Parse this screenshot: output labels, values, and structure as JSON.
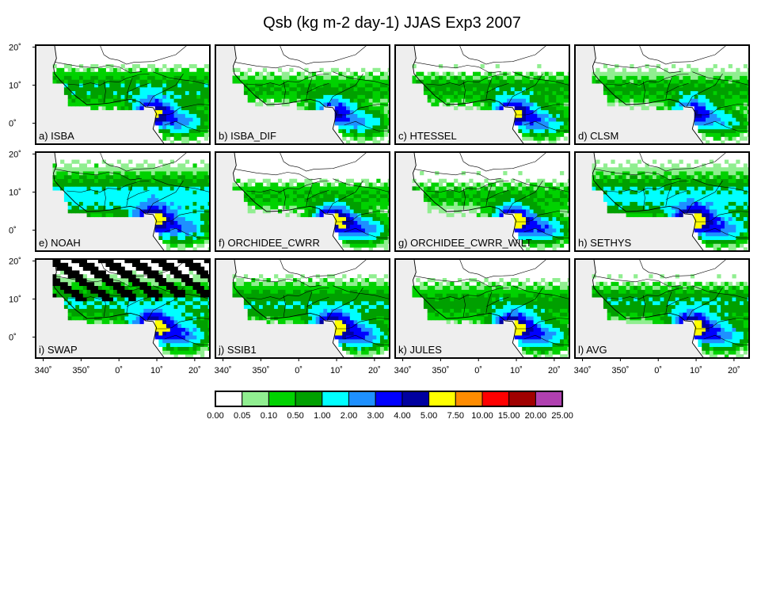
{
  "title": "Qsb (kg m-2 day-1) JJAS Exp3 2007",
  "lat_ticks": [
    "20˚",
    "10˚",
    "0˚"
  ],
  "lon_ticks": [
    "340˚",
    "350˚",
    "0˚",
    "10˚",
    "20˚"
  ],
  "panels": [
    {
      "label": "a) ISBA",
      "intensity": 0.8,
      "north": 0.55
    },
    {
      "label": "b) ISBA_DIF",
      "intensity": 0.75,
      "north": 0.25
    },
    {
      "label": "c) HTESSEL",
      "intensity": 0.85,
      "north": 0.35
    },
    {
      "label": "d) CLSM",
      "intensity": 0.7,
      "north": 0.3
    },
    {
      "label": "e) NOAH",
      "intensity": 0.8,
      "north": 0.95
    },
    {
      "label": "f) ORCHIDEE_CWRR",
      "intensity": 0.95,
      "north": 0.2
    },
    {
      "label": "g) ORCHIDEE_CWRR_WILT",
      "intensity": 0.95,
      "north": 0.2
    },
    {
      "label": "h) SETHYS",
      "intensity": 0.9,
      "north": 0.85
    },
    {
      "label": "i) SWAP",
      "intensity": 0.9,
      "north": 0.7,
      "black": true
    },
    {
      "label": "j) SSIB1",
      "intensity": 0.95,
      "north": 0.6
    },
    {
      "label": "k) JULES",
      "intensity": 0.95,
      "north": 0.45
    },
    {
      "label": "l) AVG",
      "intensity": 0.9,
      "north": 0.55
    }
  ],
  "colorbar": {
    "levels": [
      "0.00",
      "0.05",
      "0.10",
      "0.50",
      "1.00",
      "2.00",
      "3.00",
      "4.00",
      "5.00",
      "7.50",
      "10.00",
      "15.00",
      "20.00",
      "25.00"
    ],
    "colors": [
      "#ffffff",
      "#90ee90",
      "#00d200",
      "#00a000",
      "#00ffff",
      "#1e90ff",
      "#0000ff",
      "#0000a0",
      "#ffff00",
      "#ff8c00",
      "#ff0000",
      "#a00000",
      "#b040b0"
    ]
  },
  "colors": {
    "land": "#ffffff",
    "ocean": "#eeeeee"
  }
}
